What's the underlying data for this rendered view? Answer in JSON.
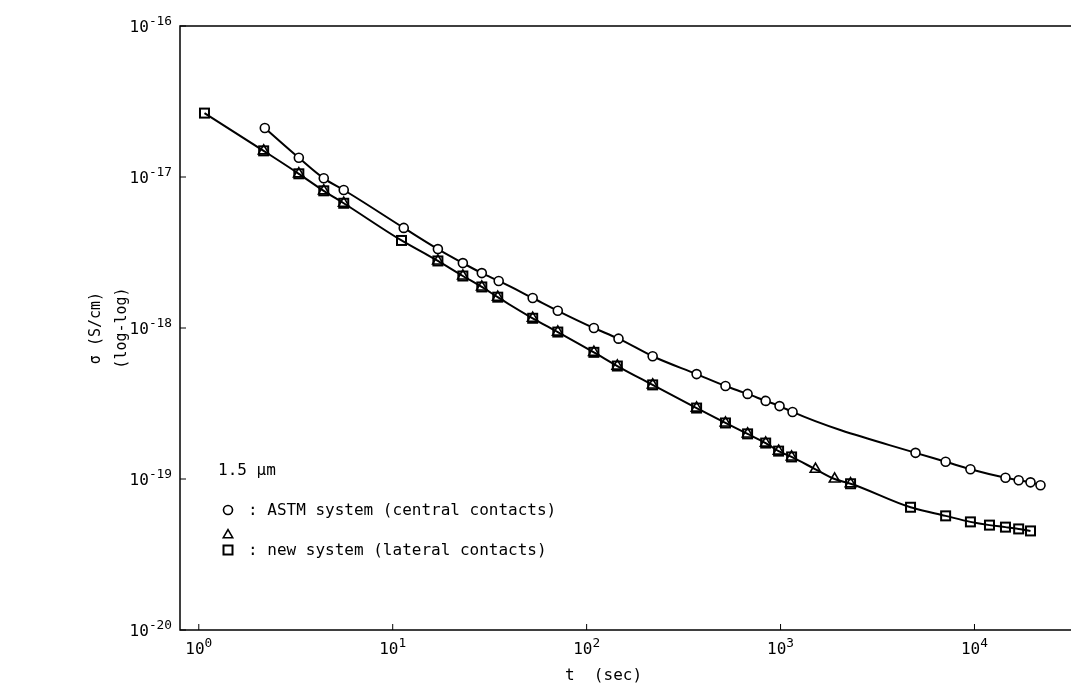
{
  "chart_data": {
    "type": "scatter",
    "xlabel": "t  (sec)",
    "ylabel": "σ (S/cm)",
    "annotations": [
      "(log-log)"
    ],
    "legend_title": "1.5 µm",
    "legend": "bottom left",
    "log": "xy",
    "grid": false,
    "line_style": "solid",
    "xlim": [
      0.8,
      30000
    ],
    "ylim": [
      1e-20,
      1e-16
    ],
    "xticks": [
      {
        "value": 1,
        "label": "10$^{0}$"
      },
      {
        "value": 10,
        "label": "10$^{1}$"
      },
      {
        "value": 100,
        "label": "10$^{2}$"
      },
      {
        "value": 1000,
        "label": "10$^{3}$"
      },
      {
        "value": 10000,
        "label": "10$^{4}$"
      }
    ],
    "yticks": [
      {
        "value": 1e-20,
        "label": "10$^{-20}$"
      },
      {
        "value": 1e-19,
        "label": "10$^{-19}$"
      },
      {
        "value": 1e-18,
        "label": "10$^{-18}$"
      },
      {
        "value": 1e-17,
        "label": "10$^{-17}$"
      },
      {
        "value": 1e-16,
        "label": "10$^{-16}$"
      }
    ],
    "series": [
      {
        "name": ": ASTM system (central contacts)",
        "type": "line",
        "marker": "circle",
        "color": "#000000",
        "x": [
          2.19,
          3.28,
          4.41,
          5.59,
          11.4,
          17.1,
          23,
          28.8,
          35.2,
          52.7,
          71,
          109,
          146,
          219,
          369,
          520,
          676,
          838,
          988,
          1153,
          4966,
          7100,
          9530,
          14450,
          16900,
          19450,
          21900
        ],
        "values": [
          2.11e-17,
          1.34e-17,
          9.8e-18,
          8.2e-18,
          4.6e-18,
          3.33e-18,
          2.69e-18,
          2.31e-18,
          2.05e-18,
          1.58e-18,
          1.3e-18,
          1e-18,
          8.5e-19,
          6.5e-19,
          4.95e-19,
          4.13e-19,
          3.66e-19,
          3.29e-19,
          3.04e-19,
          2.78e-19,
          1.49e-19,
          1.3e-19,
          1.16e-19,
          1.02e-19,
          9.8e-20,
          9.5e-20,
          9.1e-20
        ]
      },
      {
        "type": "line",
        "marker": "none",
        "color": "#000000",
        "x": [
          1.07,
          2.16,
          3.28,
          4.41,
          5.59,
          11.1,
          17.1,
          23,
          28.8,
          34.8,
          52.7,
          71,
          109,
          144,
          219,
          369,
          520,
          676,
          838,
          977,
          1140,
          1514,
          1900,
          2296,
          4680,
          7100,
          9530,
          11950,
          14450,
          16900,
          19450
        ],
        "values": [
          2.65e-17,
          1.49e-17,
          1.05e-17,
          8.1e-18,
          6.7e-18,
          3.8e-18,
          2.78e-18,
          2.21e-18,
          1.87e-18,
          1.6e-18,
          1.16e-18,
          9.4e-19,
          6.9e-19,
          5.6e-19,
          4.2e-19,
          2.95e-19,
          2.35e-19,
          1.99e-19,
          1.73e-19,
          1.53e-19,
          1.4e-19,
          1.16e-19,
          1e-19,
          9.3e-20,
          6.5e-20,
          5.7e-20,
          5.2e-20,
          4.95e-20,
          4.8e-20,
          4.67e-20,
          4.53e-20
        ]
      },
      {
        "marker": "triangle",
        "color": "#000000",
        "x": [
          2.16,
          3.28,
          4.41,
          5.59,
          17.1,
          23,
          28.8,
          34.8,
          52.7,
          71,
          109,
          144,
          219,
          369,
          520,
          676,
          838,
          977,
          1140,
          1514,
          1900,
          2296
        ],
        "values": [
          1.49e-17,
          1.05e-17,
          8.1e-18,
          6.7e-18,
          2.78e-18,
          2.21e-18,
          1.87e-18,
          1.6e-18,
          1.16e-18,
          9.4e-19,
          6.9e-19,
          5.6e-19,
          4.2e-19,
          2.95e-19,
          2.35e-19,
          1.99e-19,
          1.73e-19,
          1.53e-19,
          1.4e-19,
          1.16e-19,
          1e-19,
          9.3e-20
        ]
      },
      {
        "name": ": new system (lateral contacts)",
        "marker": "square",
        "color": "#000000",
        "x": [
          1.07,
          2.16,
          3.28,
          4.41,
          5.59,
          11.1,
          17.1,
          23,
          28.8,
          34.8,
          52.7,
          71,
          109,
          144,
          219,
          369,
          520,
          676,
          838,
          977,
          1140,
          2296,
          4680,
          7100,
          9530,
          11950,
          14450,
          16900,
          19450
        ],
        "values": [
          2.65e-17,
          1.49e-17,
          1.05e-17,
          8.1e-18,
          6.7e-18,
          3.8e-18,
          2.78e-18,
          2.21e-18,
          1.87e-18,
          1.6e-18,
          1.16e-18,
          9.4e-19,
          6.9e-19,
          5.6e-19,
          4.2e-19,
          2.95e-19,
          2.35e-19,
          1.99e-19,
          1.73e-19,
          1.53e-19,
          1.4e-19,
          9.3e-20,
          6.5e-20,
          5.7e-20,
          5.2e-20,
          4.95e-20,
          4.8e-20,
          4.67e-20,
          4.53e-20
        ]
      }
    ]
  }
}
